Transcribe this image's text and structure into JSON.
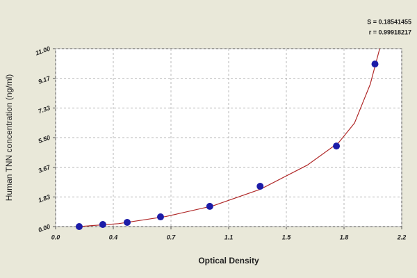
{
  "chart_data": {
    "type": "scatter",
    "xlabel": "Optical Density",
    "ylabel": "Human TNN concentration (ng/ml)",
    "annotations": [
      "S = 0.18541455",
      "r = 0.99918217"
    ],
    "points": {
      "x": [
        0.15,
        0.3,
        0.455,
        0.667,
        0.98,
        1.3,
        1.785,
        2.03
      ],
      "y": [
        0,
        0.13,
        0.26,
        0.6,
        1.25,
        2.49,
        4.98,
        10.05
      ],
      "color": "#1c1ca8"
    },
    "fit": {
      "x": [
        0.15,
        0.4,
        0.7,
        1.0,
        1.3,
        1.6,
        1.8,
        1.9,
        2.0,
        2.06
      ],
      "y": [
        0,
        0.18,
        0.62,
        1.28,
        2.3,
        3.8,
        5.2,
        6.4,
        8.8,
        11.0
      ],
      "color": "#b02828"
    },
    "xlim": [
      0,
      2.2
    ],
    "xticks": [
      {
        "value": 0,
        "label": "0.0"
      },
      {
        "value": 0.36667,
        "label": "0.4"
      },
      {
        "value": 0.73333,
        "label": "0.7"
      },
      1.1,
      {
        "value": 1.46667,
        "label": "1.5"
      },
      {
        "value": 1.83333,
        "label": "1.8"
      },
      2.2
    ],
    "ylim": [
      0,
      11
    ],
    "yticks": [
      {
        "value": 0,
        "label": "0.00"
      },
      {
        "value": 1.83333,
        "label": "1.83"
      },
      {
        "value": 3.66667,
        "label": "3.67"
      },
      {
        "value": 5.5,
        "label": "5.50"
      },
      {
        "value": 7.33333,
        "label": "7.33"
      },
      {
        "value": 9.16667,
        "label": "9.17"
      },
      {
        "value": 11,
        "label": "11.00"
      }
    ],
    "grid": true
  }
}
